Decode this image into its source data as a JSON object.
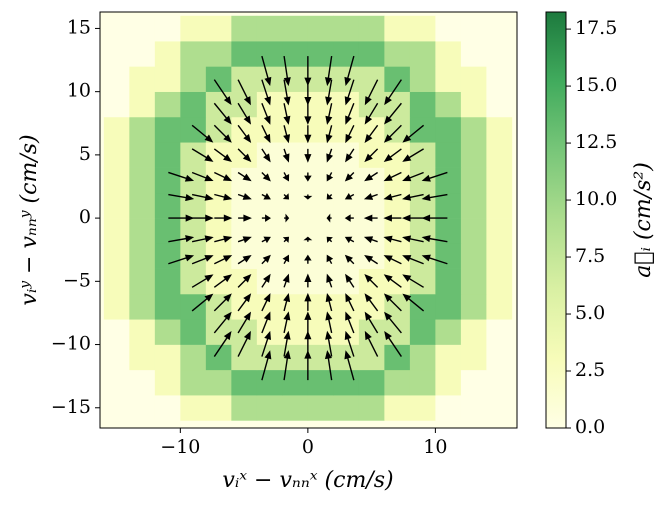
{
  "chart_data": {
    "type": "heatmap-quiver",
    "xlabel": "vᵢˣ − vₙₙˣ (cm/s)",
    "ylabel": "vᵢʸ − vₙₙʸ (cm/s)",
    "colorbar_label": "a⃗ᵢ (cm/s²)",
    "xlim": [
      -16.3,
      16.4
    ],
    "ylim": [
      -16.6,
      16.3
    ],
    "xticks": [
      {
        "value": -10,
        "label": "−10"
      },
      0,
      10
    ],
    "yticks": [
      {
        "value": -15,
        "label": "−15"
      },
      {
        "value": -10,
        "label": "−10"
      },
      {
        "value": -5,
        "label": "−5"
      },
      0,
      5,
      10,
      15
    ],
    "clim": [
      0,
      18.25
    ],
    "cticks": [
      {
        "value": 0,
        "label": "0.0"
      },
      2.5,
      {
        "value": 5,
        "label": "5.0"
      },
      7.5,
      {
        "value": 10,
        "label": "10.0"
      },
      12.5,
      {
        "value": 15,
        "label": "15.0"
      },
      17.5
    ],
    "colormap": [
      "#ffffe5",
      "#f7fcb9",
      "#d9f0a3",
      "#addd8e",
      "#78c679",
      "#41ab5d",
      "#1d7a3e"
    ],
    "histogram": {
      "xbins": [
        -16,
        -14,
        -12,
        -10,
        -8,
        -6,
        -4,
        -2,
        0,
        2,
        4,
        6,
        8,
        10,
        12,
        14,
        16
      ],
      "ybins": [
        -16,
        -14,
        -12,
        -10,
        -8,
        -6,
        -4,
        -2,
        0,
        2,
        4,
        6,
        8,
        10,
        12,
        14,
        16
      ],
      "counts": [
        [
          0,
          0,
          0,
          3,
          3,
          9,
          9,
          9,
          9,
          9,
          9,
          3,
          3,
          0,
          0,
          0
        ],
        [
          0,
          0,
          3,
          9,
          9,
          13,
          13,
          13,
          13,
          13,
          13,
          9,
          9,
          3,
          0,
          0
        ],
        [
          0,
          3,
          3,
          9,
          13,
          7,
          7,
          7,
          7,
          7,
          7,
          13,
          9,
          3,
          3,
          0
        ],
        [
          0,
          3,
          9,
          13,
          7,
          7,
          3,
          3,
          3,
          3,
          7,
          7,
          13,
          9,
          3,
          0
        ],
        [
          3,
          9,
          13,
          13,
          7,
          3,
          3,
          3,
          3,
          3,
          3,
          7,
          13,
          13,
          9,
          3
        ],
        [
          3,
          9,
          13,
          7,
          3,
          3,
          1,
          1,
          1,
          1,
          3,
          3,
          7,
          13,
          9,
          3
        ],
        [
          3,
          9,
          13,
          7,
          3,
          1,
          1,
          1,
          1,
          1,
          1,
          3,
          7,
          13,
          9,
          3
        ],
        [
          3,
          9,
          13,
          7,
          3,
          1,
          1,
          1,
          1,
          1,
          1,
          3,
          7,
          13,
          9,
          3
        ],
        [
          3,
          9,
          13,
          7,
          3,
          1,
          1,
          1,
          1,
          1,
          1,
          3,
          7,
          13,
          9,
          3
        ],
        [
          3,
          9,
          13,
          7,
          3,
          1,
          1,
          1,
          1,
          1,
          1,
          3,
          7,
          13,
          9,
          3
        ],
        [
          3,
          9,
          13,
          7,
          3,
          3,
          1,
          1,
          1,
          1,
          3,
          3,
          7,
          13,
          9,
          3
        ],
        [
          3,
          9,
          13,
          13,
          7,
          3,
          3,
          3,
          3,
          3,
          3,
          7,
          13,
          13,
          9,
          3
        ],
        [
          0,
          3,
          9,
          13,
          7,
          7,
          3,
          3,
          3,
          3,
          7,
          7,
          13,
          9,
          3,
          0
        ],
        [
          0,
          3,
          3,
          9,
          13,
          7,
          7,
          7,
          7,
          7,
          7,
          13,
          9,
          3,
          3,
          0
        ],
        [
          0,
          0,
          3,
          9,
          9,
          13,
          13,
          13,
          13,
          13,
          13,
          9,
          9,
          3,
          0,
          0
        ],
        [
          0,
          0,
          0,
          3,
          3,
          9,
          9,
          9,
          9,
          9,
          9,
          3,
          3,
          0,
          0,
          0
        ]
      ]
    },
    "quiver": {
      "x": [
        -10,
        -8.3,
        -6.7,
        -5,
        -3.3,
        -1.7,
        0,
        1.7,
        3.3,
        5,
        6.7,
        8.3,
        10
      ],
      "y": [
        -11.7,
        -10,
        -8.3,
        -6.7,
        -5,
        -3.3,
        -1.7,
        0,
        1.7,
        3.3,
        5,
        6.7,
        8.3,
        10,
        11.7
      ],
      "u": [
        [
          null,
          null,
          null,
          null,
          2.6,
          1.4,
          0,
          -1.4,
          -2.6,
          null,
          null,
          null,
          null
        ],
        [
          null,
          null,
          5.4,
          4,
          2.6,
          1.4,
          0,
          -1.4,
          -2.6,
          -4,
          -5.4,
          null,
          null
        ],
        [
          null,
          null,
          5.4,
          4,
          2.6,
          1.4,
          0,
          -1.4,
          -2.6,
          -4,
          -5.4,
          null,
          null
        ],
        [
          null,
          6.6,
          5.4,
          4,
          2.6,
          1.4,
          0,
          -1.4,
          -2.6,
          -4,
          -5.4,
          -6.6,
          null
        ],
        [
          null,
          6.6,
          5.4,
          4,
          2.6,
          1.4,
          0,
          -1.4,
          -2.6,
          -4,
          -5.4,
          -6.6,
          null
        ],
        [
          8,
          6.6,
          5.4,
          4,
          2.6,
          1.4,
          0,
          -1.4,
          -2.6,
          -4,
          -5.4,
          -6.6,
          -8
        ],
        [
          8,
          6.6,
          5.4,
          4,
          2.6,
          1.4,
          0,
          -1.4,
          -2.6,
          -4,
          -5.4,
          -6.6,
          -8
        ],
        [
          8,
          6.6,
          5.4,
          4,
          2.6,
          1.4,
          0,
          -1.4,
          -2.6,
          -4,
          -5.4,
          -6.6,
          -8
        ],
        [
          8,
          6.6,
          5.4,
          4,
          2.6,
          1.4,
          0,
          -1.4,
          -2.6,
          -4,
          -5.4,
          -6.6,
          -8
        ],
        [
          8,
          6.6,
          5.4,
          4,
          2.6,
          1.4,
          0,
          -1.4,
          -2.6,
          -4,
          -5.4,
          -6.6,
          -8
        ],
        [
          null,
          6.6,
          5.4,
          4,
          2.6,
          1.4,
          0,
          -1.4,
          -2.6,
          -4,
          -5.4,
          -6.6,
          null
        ],
        [
          null,
          6.6,
          5.4,
          4,
          2.6,
          1.4,
          0,
          -1.4,
          -2.6,
          -4,
          -5.4,
          -6.6,
          null
        ],
        [
          null,
          null,
          5.4,
          4,
          2.6,
          1.4,
          0,
          -1.4,
          -2.6,
          -4,
          -5.4,
          null,
          null
        ],
        [
          null,
          null,
          5.4,
          4,
          2.6,
          1.4,
          0,
          -1.4,
          -2.6,
          -4,
          -5.4,
          null,
          null
        ],
        [
          null,
          null,
          null,
          null,
          2.6,
          1.4,
          0,
          -1.4,
          -2.6,
          null,
          null,
          null,
          null
        ]
      ],
      "v": [
        [
          null,
          null,
          null,
          null,
          9.4,
          9.4,
          9.4,
          9.4,
          9.4,
          null,
          null,
          null,
          null
        ],
        [
          null,
          null,
          8,
          8,
          8,
          8,
          8,
          8,
          8,
          8,
          8,
          null,
          null
        ],
        [
          null,
          null,
          6.6,
          6.6,
          6.6,
          6.6,
          6.6,
          6.6,
          6.6,
          6.6,
          6.6,
          null,
          null
        ],
        [
          null,
          5.4,
          5.4,
          5.4,
          5.4,
          5.4,
          5.4,
          5.4,
          5.4,
          5.4,
          5.4,
          5.4,
          null
        ],
        [
          null,
          4,
          4,
          4,
          4,
          4,
          4,
          4,
          4,
          4,
          4,
          4,
          null
        ],
        [
          2.6,
          2.6,
          2.6,
          2.6,
          2.6,
          2.6,
          2.6,
          2.6,
          2.6,
          2.6,
          2.6,
          2.6,
          2.6
        ],
        [
          1.4,
          1.4,
          1.4,
          1.4,
          1.4,
          1.4,
          1.4,
          1.4,
          1.4,
          1.4,
          1.4,
          1.4,
          1.4
        ],
        [
          0,
          0,
          0,
          0,
          0,
          0,
          0,
          0,
          0,
          0,
          0,
          0,
          0
        ],
        [
          -1.4,
          -1.4,
          -1.4,
          -1.4,
          -1.4,
          -1.4,
          -1.4,
          -1.4,
          -1.4,
          -1.4,
          -1.4,
          -1.4,
          -1.4
        ],
        [
          -2.6,
          -2.6,
          -2.6,
          -2.6,
          -2.6,
          -2.6,
          -2.6,
          -2.6,
          -2.6,
          -2.6,
          -2.6,
          -2.6,
          -2.6
        ],
        [
          null,
          -4,
          -4,
          -4,
          -4,
          -4,
          -4,
          -4,
          -4,
          -4,
          -4,
          -4,
          null
        ],
        [
          null,
          -5.4,
          -5.4,
          -5.4,
          -5.4,
          -5.4,
          -5.4,
          -5.4,
          -5.4,
          -5.4,
          -5.4,
          -5.4,
          null
        ],
        [
          null,
          null,
          -6.6,
          -6.6,
          -6.6,
          -6.6,
          -6.6,
          -6.6,
          -6.6,
          -6.6,
          -6.6,
          null,
          null
        ],
        [
          null,
          null,
          -8,
          -8,
          -8,
          -8,
          -8,
          -8,
          -8,
          -8,
          -8,
          null,
          null
        ],
        [
          null,
          null,
          null,
          null,
          -9.4,
          -9.4,
          -9.4,
          -9.4,
          -9.4,
          null,
          null,
          null,
          null
        ]
      ]
    }
  }
}
